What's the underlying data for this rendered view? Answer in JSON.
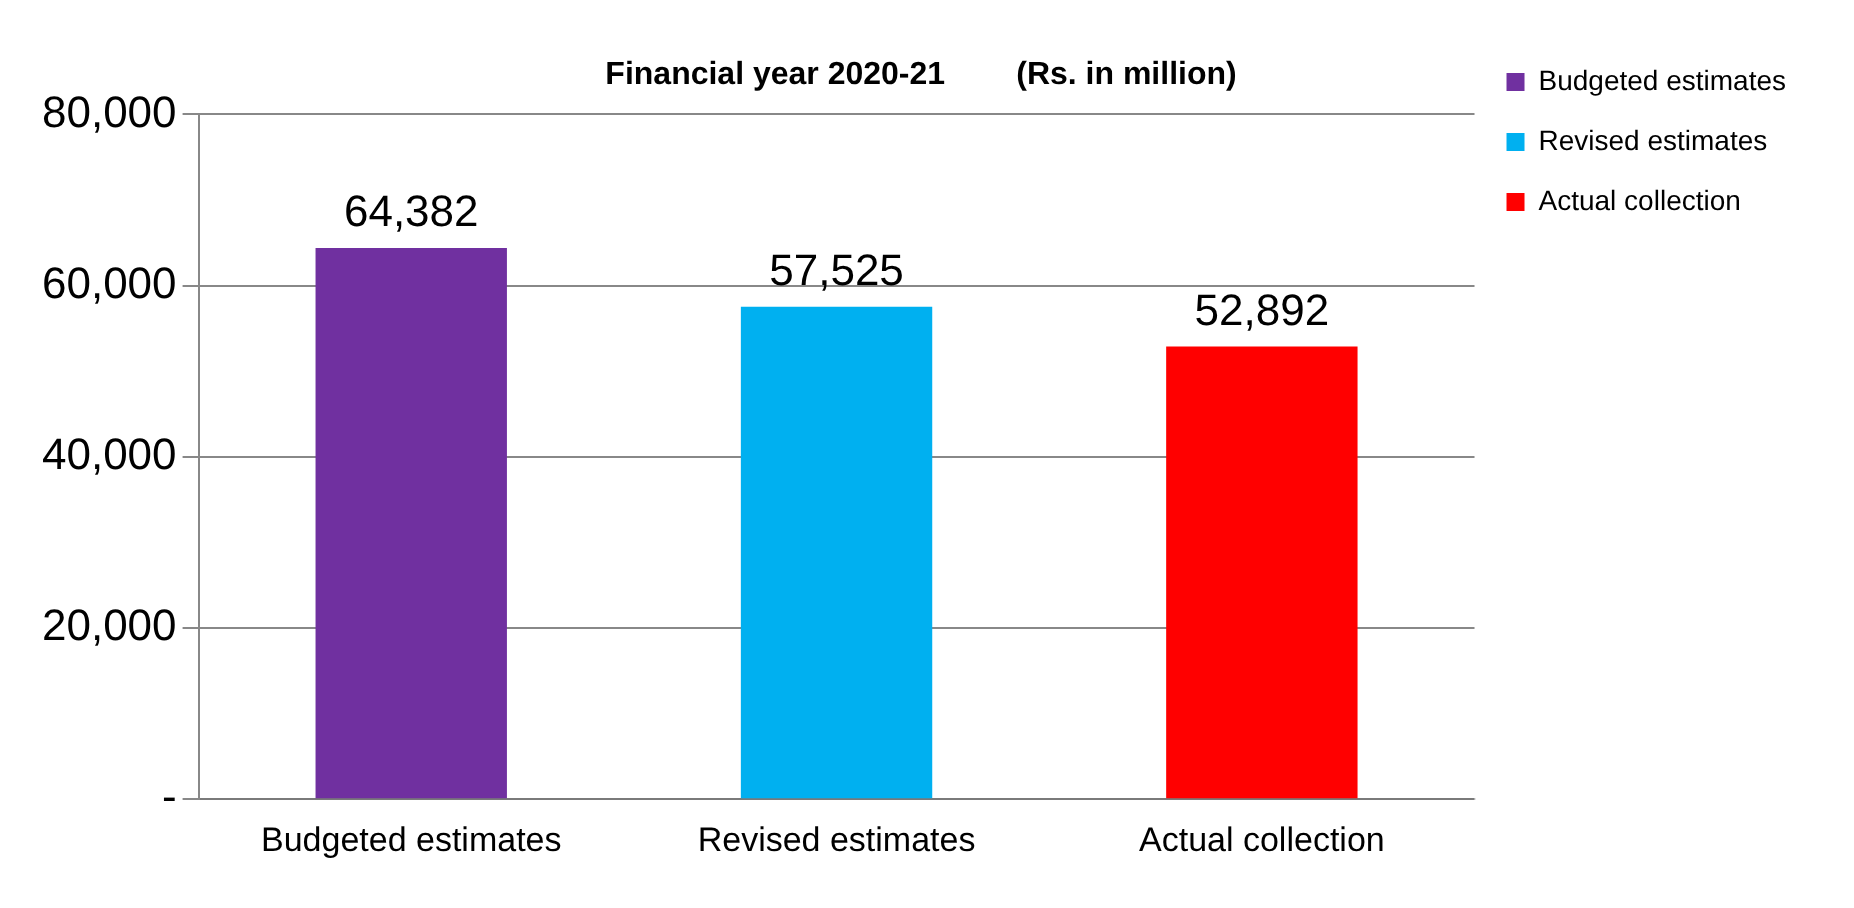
{
  "chart_data": {
    "type": "bar",
    "title": "Financial year 2020-21        (Rs. in million)",
    "categories": [
      "Budgeted estimates",
      "Revised estimates",
      "Actual collection"
    ],
    "series": [
      {
        "name": "Budgeted estimates",
        "color": "#7030a0",
        "values": [
          64382,
          null,
          null
        ],
        "value_labels": [
          "64,382",
          null,
          null
        ]
      },
      {
        "name": "Revised estimates",
        "color": "#00b0f0",
        "values": [
          null,
          57525,
          null
        ],
        "value_labels": [
          null,
          "57,525",
          null
        ]
      },
      {
        "name": "Actual collection",
        "color": "#ff0000",
        "values": [
          null,
          null,
          52892
        ],
        "value_labels": [
          null,
          null,
          "52,892"
        ]
      }
    ],
    "ylim": [
      0,
      80000
    ],
    "yticks": [
      {
        "value": 0,
        "label": "-"
      },
      {
        "value": 20000,
        "label": "20,000"
      },
      {
        "value": 40000,
        "label": "40,000"
      },
      {
        "value": 60000,
        "label": "60,000"
      },
      {
        "value": 80000,
        "label": "80,000"
      }
    ],
    "grid": "y",
    "legend": "top right"
  }
}
